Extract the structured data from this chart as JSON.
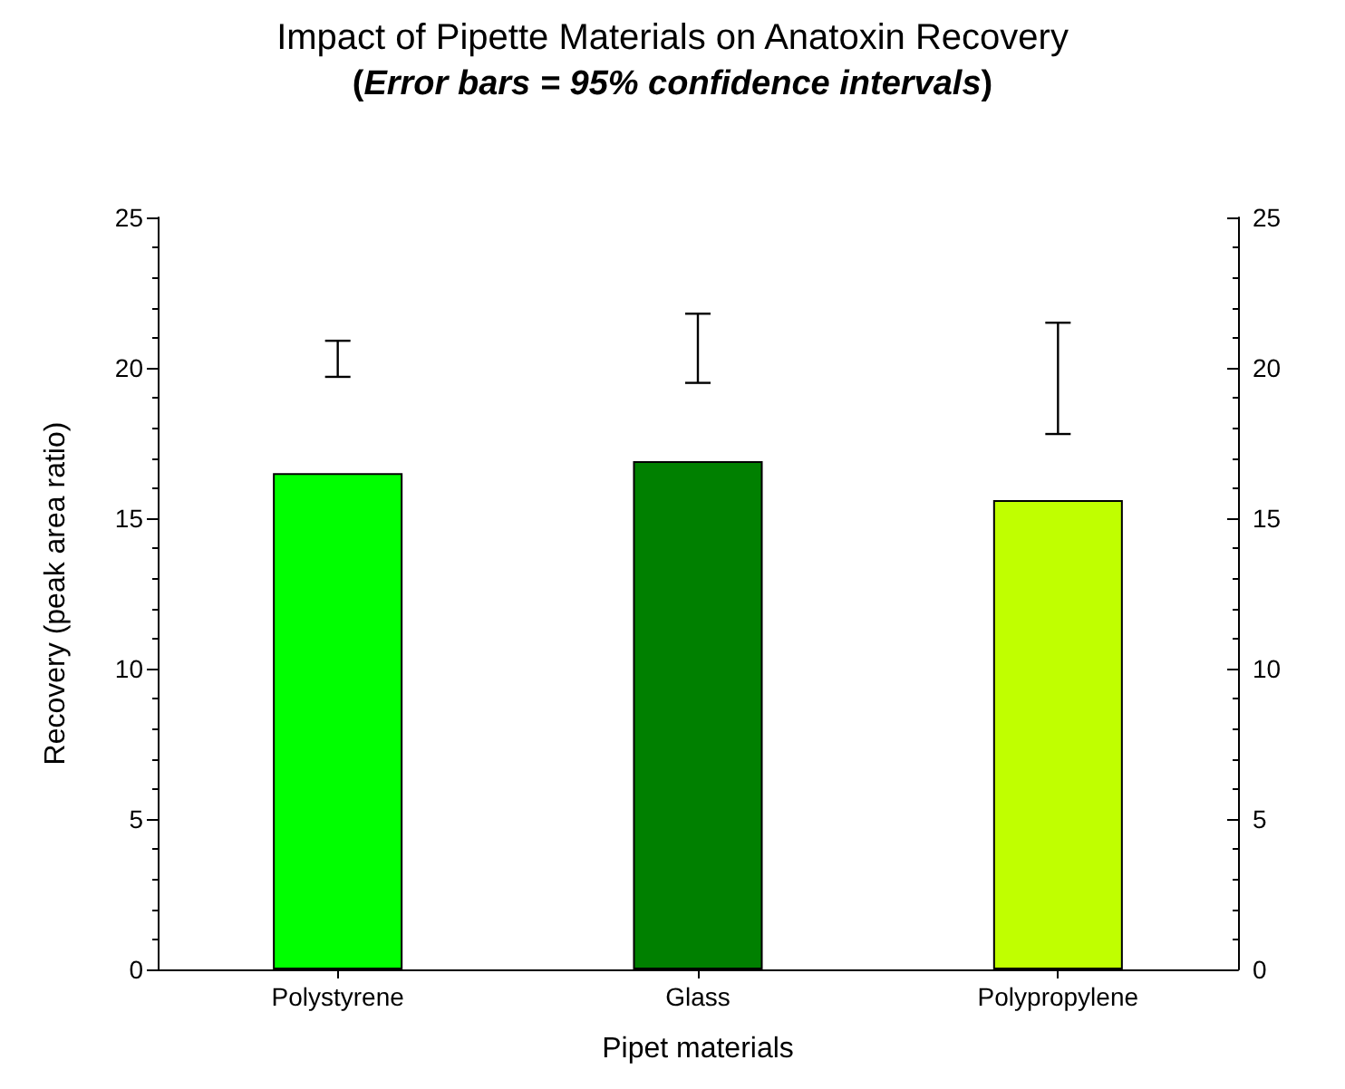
{
  "chart_data": {
    "type": "bar",
    "title": "Impact of Pipette Materials on Anatoxin Recovery",
    "subtitle": "(Error bars = 95% confidence intervals)",
    "xlabel": "Pipet materials",
    "ylabel": "Recovery (peak area ratio)",
    "categories": [
      "Polystyrene",
      "Glass",
      "Polypropylene"
    ],
    "values": [
      16.5,
      16.9,
      15.6
    ],
    "colors": [
      "#00ff00",
      "#008000",
      "#c0ff00"
    ],
    "errors": [
      [
        19.7,
        20.9
      ],
      [
        19.5,
        21.8
      ],
      [
        17.8,
        21.5
      ]
    ],
    "ylim": [
      0,
      25
    ],
    "yticks": [
      0,
      5,
      10,
      15,
      20,
      25
    ],
    "y2lim": [
      0,
      25
    ],
    "y2ticks": [
      0,
      5,
      10,
      15,
      20,
      25
    ],
    "grid": false
  }
}
